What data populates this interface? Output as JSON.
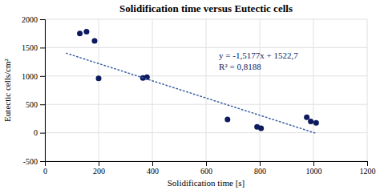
{
  "chart_data": {
    "type": "scatter",
    "title": "Solidification time versus Eutectic cells",
    "xlabel": "Solidification time [s]",
    "ylabel": "Eutectic cells/cm²",
    "xlim": [
      0,
      1200
    ],
    "ylim": [
      -500,
      2000
    ],
    "xticks": [
      0,
      200,
      400,
      600,
      800,
      1000,
      1200
    ],
    "yticks": [
      -500,
      0,
      500,
      1000,
      1500,
      2000
    ],
    "grid": true,
    "annotations": [
      "y = -1,5177x + 1522,7",
      "R² = 0,8188"
    ],
    "series": [
      {
        "type": "scatter",
        "color": "#0d1b5e",
        "marker": "circle",
        "x": [
          130,
          155,
          185,
          200,
          365,
          380,
          680,
          790,
          805,
          975,
          990,
          1010
        ],
        "values": [
          1750,
          1780,
          1620,
          960,
          965,
          980,
          235,
          105,
          80,
          275,
          200,
          175
        ]
      },
      {
        "type": "line",
        "color": "#3a5fa0",
        "line_style": "dotted",
        "x": [
          80,
          1005
        ],
        "values": [
          1401.284,
          -2.5885
        ]
      }
    ]
  }
}
